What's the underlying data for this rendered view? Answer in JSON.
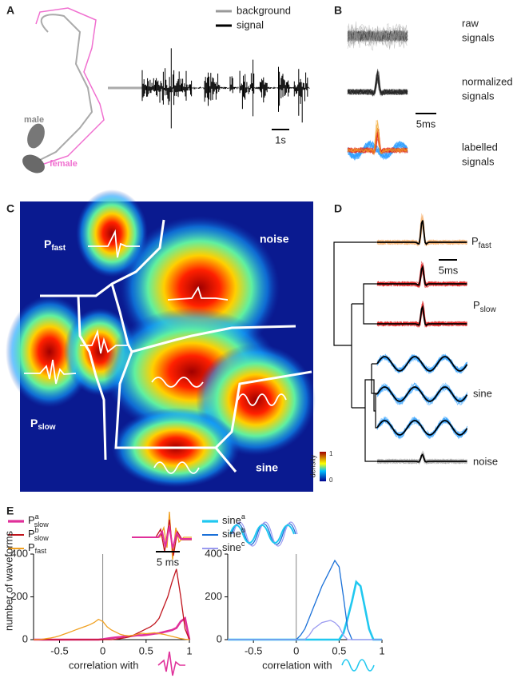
{
  "panel_a": {
    "label": "A",
    "legend": [
      "background",
      "signal"
    ],
    "scale": "1s",
    "male": "male",
    "female": "female"
  },
  "panel_b": {
    "label": "B",
    "raw": [
      "raw",
      "signals"
    ],
    "normalized": [
      "normalized",
      "signals"
    ],
    "labelled": [
      "labelled",
      "signals"
    ],
    "scale": "5ms"
  },
  "panel_c": {
    "label": "C",
    "noise": "noise",
    "p_fast": {
      "main": "P",
      "sub": "fast"
    },
    "p_slow": {
      "main": "P",
      "sub": "slow"
    },
    "sine": "sine",
    "colorbar": {
      "label": "density",
      "max": "1",
      "min": "0"
    }
  },
  "panel_d": {
    "label": "D",
    "p_fast": {
      "main": "P",
      "sub": "fast"
    },
    "scale": "5ms",
    "p_slow": {
      "main": "P",
      "sub": "slow"
    },
    "sine": "sine",
    "noise": "noise"
  },
  "panel_e": {
    "label": "E",
    "scale": "5 ms"
  },
  "chart_data": [
    {
      "type": "line",
      "ylabel": "number of waveforms",
      "xlabel": "correlation with",
      "x": [
        -0.8,
        -0.75,
        -0.7,
        -0.65,
        -0.6,
        -0.55,
        -0.5,
        -0.45,
        -0.4,
        -0.35,
        -0.3,
        -0.25,
        -0.2,
        -0.15,
        -0.1,
        -0.05,
        0,
        0.05,
        0.1,
        0.15,
        0.2,
        0.25,
        0.3,
        0.35,
        0.4,
        0.45,
        0.5,
        0.55,
        0.6,
        0.65,
        0.7,
        0.75,
        0.8,
        0.85,
        0.9,
        0.95,
        1
      ],
      "xlim": [
        -0.8,
        1
      ],
      "xticks": [
        -0.5,
        0,
        0.5,
        1
      ],
      "ylim": [
        0,
        400
      ],
      "yticks": [
        0,
        200,
        400
      ],
      "series": [
        {
          "name": "P",
          "subscript": "slow",
          "superscript": "a",
          "color": "#e0309a",
          "linewidth": 2.6,
          "values": [
            0,
            0,
            0,
            0,
            0,
            0,
            0,
            0,
            0,
            0,
            0,
            0,
            0,
            0,
            0,
            0,
            2,
            5,
            8,
            10,
            12,
            15,
            15,
            18,
            20,
            20,
            22,
            25,
            28,
            30,
            35,
            40,
            45,
            55,
            85,
            100,
            0
          ]
        },
        {
          "name": "P",
          "subscript": "slow",
          "superscript": "b",
          "color": "#c0141c",
          "linewidth": 1.3,
          "values": [
            0,
            0,
            0,
            0,
            0,
            0,
            0,
            0,
            0,
            0,
            0,
            0,
            0,
            0,
            0,
            0,
            0,
            0,
            0,
            2,
            5,
            8,
            12,
            20,
            30,
            40,
            50,
            60,
            75,
            100,
            150,
            200,
            270,
            330,
            200,
            50,
            0
          ]
        },
        {
          "name": "P",
          "subscript": "fast",
          "color": "#f0a020",
          "linewidth": 1.3,
          "values": [
            0,
            0,
            2,
            5,
            8,
            12,
            18,
            25,
            32,
            40,
            48,
            55,
            62,
            70,
            80,
            95,
            85,
            60,
            45,
            35,
            25,
            20,
            18,
            20,
            25,
            30,
            28,
            30,
            32,
            28,
            25,
            20,
            15,
            10,
            5,
            2,
            0
          ]
        }
      ]
    },
    {
      "type": "line",
      "xlabel": "correlation with",
      "x": [
        -0.8,
        -0.75,
        -0.7,
        -0.65,
        -0.6,
        -0.55,
        -0.5,
        -0.45,
        -0.4,
        -0.35,
        -0.3,
        -0.25,
        -0.2,
        -0.15,
        -0.1,
        -0.05,
        0,
        0.05,
        0.1,
        0.15,
        0.2,
        0.25,
        0.3,
        0.35,
        0.4,
        0.45,
        0.5,
        0.55,
        0.6,
        0.65,
        0.7,
        0.75,
        0.8,
        0.85,
        0.9,
        0.95,
        1
      ],
      "xlim": [
        -0.8,
        1
      ],
      "xticks": [
        -0.5,
        0,
        0.5,
        1
      ],
      "ylim": [
        0,
        400
      ],
      "yticks": [
        0,
        200,
        400
      ],
      "series": [
        {
          "name": "sine",
          "superscript": "a",
          "color": "#20c8f0",
          "linewidth": 2.6,
          "values": [
            0,
            0,
            0,
            0,
            0,
            0,
            0,
            0,
            0,
            0,
            0,
            0,
            0,
            0,
            0,
            0,
            0,
            0,
            0,
            0,
            0,
            0,
            0,
            0,
            0,
            0,
            0,
            30,
            100,
            180,
            270,
            250,
            150,
            50,
            0,
            0,
            0
          ]
        },
        {
          "name": "sine",
          "superscript": "b",
          "color": "#1a70d8",
          "linewidth": 1.3,
          "values": [
            0,
            0,
            0,
            0,
            0,
            0,
            0,
            0,
            0,
            0,
            0,
            0,
            0,
            0,
            0,
            0,
            0,
            20,
            50,
            100,
            150,
            200,
            250,
            290,
            330,
            370,
            340,
            200,
            50,
            0,
            0,
            0,
            0,
            0,
            0,
            0,
            0
          ]
        },
        {
          "name": "sine",
          "superscript": "c",
          "color": "#9a9af0",
          "linewidth": 1.3,
          "values": [
            0,
            0,
            0,
            0,
            0,
            0,
            0,
            0,
            0,
            0,
            0,
            0,
            0,
            0,
            0,
            0,
            0,
            0,
            0,
            20,
            50,
            65,
            80,
            85,
            90,
            80,
            60,
            20,
            0,
            0,
            0,
            0,
            0,
            0,
            0,
            0,
            0
          ]
        }
      ]
    }
  ]
}
